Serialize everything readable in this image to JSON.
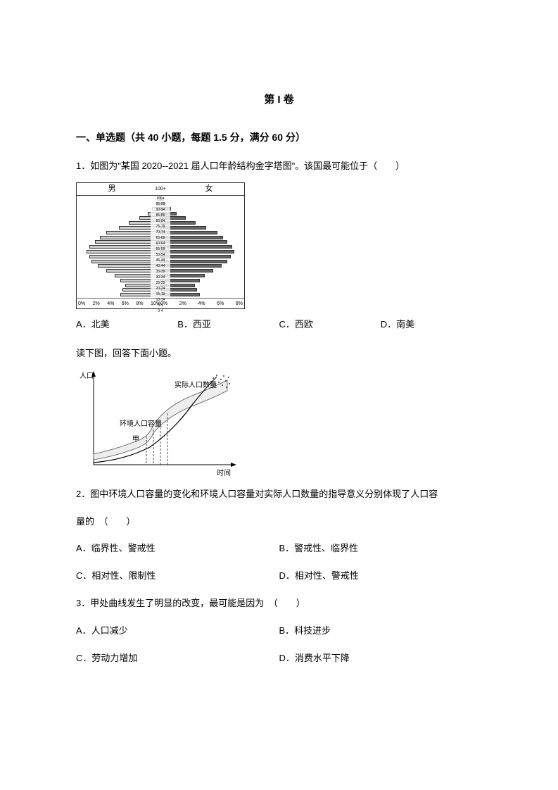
{
  "title": "第 I 卷",
  "section_header": "一、单选题（共 40 小题，每题 1.5 分，满分 60 分）",
  "q1": {
    "text": "1．如图为\"某国 2020--2021 届人口年龄结构金字塔图\"。该国最可能位于（　　）",
    "options": {
      "A": "A．北美",
      "B": "B．西亚",
      "C": "C．西欧",
      "D": "D．南美"
    }
  },
  "pyramid": {
    "gender_left": "男",
    "gender_right": "女",
    "age_label_top": "100+",
    "age_groups": [
      "100+",
      "95-99",
      "90-94",
      "85-89",
      "80-84",
      "75-79",
      "70-74",
      "65-69",
      "60-64",
      "55-59",
      "50-54",
      "45-49",
      "40-44",
      "35-39",
      "30-34",
      "25-29",
      "20-24",
      "15-19",
      "10-14",
      "5-9",
      "0-4"
    ],
    "left_bars_pct": [
      0.3,
      0.5,
      1.0,
      1.5,
      2.5,
      3.8,
      5.0,
      6.5,
      7.2,
      7.8,
      8.5,
      8.8,
      8.5,
      8.2,
      7.5,
      6.5,
      5.5,
      4.8,
      4.2,
      4.5,
      4.8
    ],
    "right_bars_pct": [
      0.4,
      0.7,
      1.3,
      1.9,
      3.0,
      4.2,
      5.5,
      6.8,
      7.5,
      8.0,
      8.6,
      8.8,
      8.4,
      8.0,
      7.3,
      6.3,
      5.3,
      4.7,
      4.1,
      4.4,
      4.7
    ],
    "axis_ticks": [
      "10%",
      "8%",
      "6%",
      "4%",
      "2%",
      "0%",
      "0%",
      "2%",
      "4%",
      "6%",
      "8%"
    ],
    "bar_max_pct": 10
  },
  "instruction_before_q2": "读下图，回答下面小题。",
  "line_chart": {
    "y_label": "人口",
    "x_label": "时间",
    "label_actual": "实际人口数量",
    "label_capacity": "环境人口容量",
    "label_jia": "甲",
    "capacity_background": "#f0f0f0",
    "actual_color": "#000000"
  },
  "q2": {
    "text": "2．图中环境人口容量的变化和环境人口容量对实际人口数量的指导意义分别体现了人口容",
    "text_cont": "量的　（　　）",
    "options": {
      "A": "A．临界性、警戒性",
      "B": "B．警戒性、临界性",
      "C": "C．相对性、限制性",
      "D": "D．相对性、警戒性"
    }
  },
  "q3": {
    "text": "3．甲处曲线发生了明显的改变，最可能是因为　（　　）",
    "options": {
      "A": "A．人口减少",
      "B": "B．科技进步",
      "C": "C．劳动力增加",
      "D": "D．消费水平下降"
    }
  }
}
